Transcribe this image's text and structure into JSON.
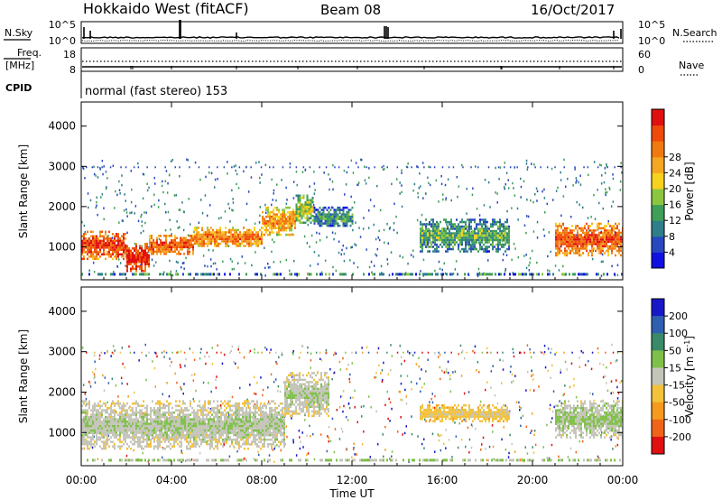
{
  "header": {
    "radar": "Hokkaido West (fitACF)",
    "beam": "Beam 08",
    "date": "16/Oct/2017"
  },
  "noise_panel": {
    "left_label": "N.Sky",
    "right_label": "N.Search",
    "left_ticks": [
      "10^5",
      "10^0"
    ],
    "right_ticks": [
      "10^5",
      "10^0"
    ]
  },
  "freq_panel": {
    "label_line1": "Freq.",
    "label_line2": "[MHz]",
    "right_label": "Nave",
    "left_ticks": [
      "18",
      "8"
    ],
    "right_ticks": [
      "60",
      "0"
    ]
  },
  "cpid_panel": {
    "label": "CPID",
    "mode_text": "normal (fast stereo) 153"
  },
  "power_panel": {
    "ylabel": "Slant Range [km]",
    "yticks": [
      1000,
      2000,
      3000,
      4000
    ],
    "ylim": [
      180,
      4600
    ],
    "colorbar_label": "Power [dB]",
    "colorbar_ticks": [
      "4",
      "8",
      "12",
      "16",
      "20",
      "24",
      "28"
    ],
    "colorbar_colors": [
      "#1010e0",
      "#2848c0",
      "#2f7f8a",
      "#3f9e58",
      "#8cc63f",
      "#f6d11e",
      "#f5a623",
      "#f07a10",
      "#f04a0a",
      "#e01010"
    ]
  },
  "velocity_panel": {
    "ylabel": "Slant Range [km]",
    "yticks": [
      1000,
      2000,
      3000,
      4000
    ],
    "ylim": [
      180,
      4600
    ],
    "colorbar_label": "Velocity [m s",
    "colorbar_label_sup": "-1",
    "colorbar_label_end": "]",
    "colorbar_ticks": [
      "200",
      "100",
      "50",
      "15",
      "-15",
      "-50",
      "-100",
      "-200"
    ],
    "colorbar_colors": [
      "#1818c8",
      "#2f5fb0",
      "#3a8a6a",
      "#7fc04a",
      "#c4c4b8",
      "#f3c23a",
      "#f59a1c",
      "#f0641a",
      "#e01010"
    ]
  },
  "time_axis": {
    "label": "Time UT",
    "ticks": [
      "00:00",
      "04:00",
      "08:00",
      "12:00",
      "16:00",
      "20:00",
      "00:00"
    ]
  },
  "chart_data": [
    {
      "type": "heatmap",
      "name": "Power",
      "xlabel": "Time UT",
      "ylabel": "Slant Range [km]",
      "x_range_hours": [
        0,
        24
      ],
      "ylim": [
        180,
        4600
      ],
      "units": "dB",
      "bands": [
        {
          "t_start": 0,
          "t_end": 2,
          "r_low": 700,
          "r_high": 1400,
          "value": 26
        },
        {
          "t_start": 2,
          "t_end": 3,
          "r_low": 400,
          "r_high": 1100,
          "value": 28
        },
        {
          "t_start": 3,
          "t_end": 5,
          "r_low": 800,
          "r_high": 1300,
          "value": 24
        },
        {
          "t_start": 5,
          "t_end": 8,
          "r_low": 1000,
          "r_high": 1500,
          "value": 22
        },
        {
          "t_start": 8,
          "t_end": 9.5,
          "r_low": 1300,
          "r_high": 2000,
          "value": 20
        },
        {
          "t_start": 9.5,
          "t_end": 10.3,
          "r_low": 1600,
          "r_high": 2300,
          "value": 14
        },
        {
          "t_start": 10.3,
          "t_end": 12,
          "r_low": 1500,
          "r_high": 2000,
          "value": 8
        },
        {
          "t_start": 15,
          "t_end": 19,
          "r_low": 900,
          "r_high": 1700,
          "value": 10
        },
        {
          "t_start": 21,
          "t_end": 24,
          "r_low": 800,
          "r_high": 1600,
          "value": 24
        }
      ]
    },
    {
      "type": "heatmap",
      "name": "Velocity",
      "xlabel": "Time UT",
      "ylabel": "Slant Range [km]",
      "x_range_hours": [
        0,
        24
      ],
      "ylim": [
        180,
        4600
      ],
      "units": "m s-1",
      "bands": [
        {
          "t_start": 0,
          "t_end": 9,
          "r_low": 600,
          "r_high": 1800,
          "value": 0
        },
        {
          "t_start": 9,
          "t_end": 11,
          "r_low": 1400,
          "r_high": 2500,
          "value": 0
        },
        {
          "t_start": 15,
          "t_end": 19,
          "r_low": 1300,
          "r_high": 1700,
          "value": -30
        },
        {
          "t_start": 21,
          "t_end": 24,
          "r_low": 900,
          "r_high": 1800,
          "value": 10
        }
      ]
    }
  ]
}
